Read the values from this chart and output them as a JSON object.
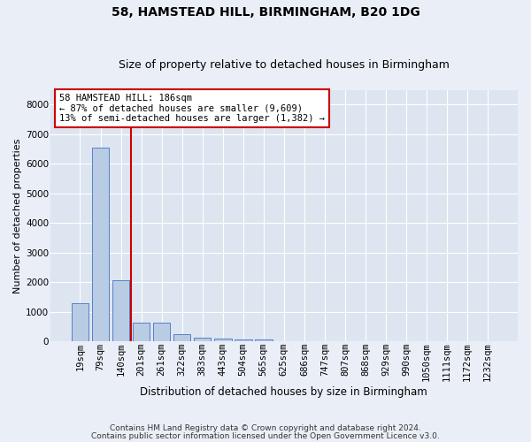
{
  "title1": "58, HAMSTEAD HILL, BIRMINGHAM, B20 1DG",
  "title2": "Size of property relative to detached houses in Birmingham",
  "xlabel": "Distribution of detached houses by size in Birmingham",
  "ylabel": "Number of detached properties",
  "footnote1": "Contains HM Land Registry data © Crown copyright and database right 2024.",
  "footnote2": "Contains public sector information licensed under the Open Government Licence v3.0.",
  "annotation_line1": "58 HAMSTEAD HILL: 186sqm",
  "annotation_line2": "← 87% of detached houses are smaller (9,609)",
  "annotation_line3": "13% of semi-detached houses are larger (1,382) →",
  "bar_color": "#b8cce4",
  "bar_edge_color": "#4472c4",
  "vline_color": "#cc0000",
  "categories": [
    "19sqm",
    "79sqm",
    "140sqm",
    "201sqm",
    "261sqm",
    "322sqm",
    "383sqm",
    "443sqm",
    "504sqm",
    "565sqm",
    "625sqm",
    "686sqm",
    "747sqm",
    "807sqm",
    "868sqm",
    "929sqm",
    "990sqm",
    "1050sqm",
    "1111sqm",
    "1172sqm",
    "1232sqm"
  ],
  "values": [
    1300,
    6550,
    2080,
    650,
    650,
    250,
    130,
    90,
    60,
    60,
    0,
    0,
    0,
    0,
    0,
    0,
    0,
    0,
    0,
    0,
    0
  ],
  "ylim": [
    0,
    8500
  ],
  "yticks": [
    0,
    1000,
    2000,
    3000,
    4000,
    5000,
    6000,
    7000,
    8000
  ],
  "background_color": "#dde5f0",
  "grid_color": "#ffffff",
  "fig_background": "#eaeff7",
  "vline_bin_index": 2,
  "title1_fontsize": 10,
  "title2_fontsize": 9,
  "xlabel_fontsize": 8.5,
  "ylabel_fontsize": 8,
  "tick_fontsize": 7.5,
  "annotation_fontsize": 7.5,
  "footnote_fontsize": 6.5
}
